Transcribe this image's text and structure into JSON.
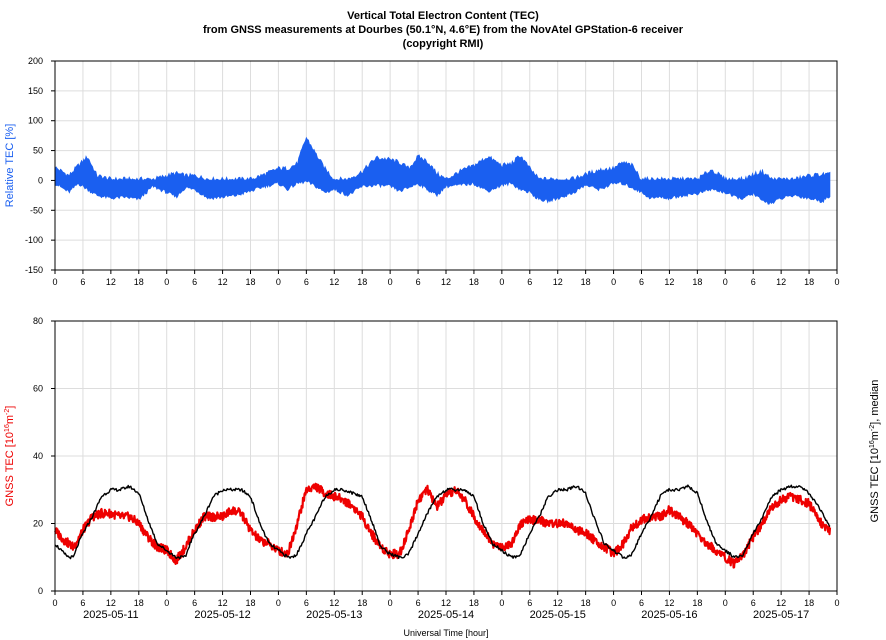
{
  "title": {
    "line1": "Vertical Total Electron Content (TEC)",
    "line2": "from GNSS measurements at Dourbes (50.1°N, 4.6°E) from the NovAtel GPStation-6 receiver",
    "line3": "(copyright RMI)"
  },
  "colors": {
    "relative": "#1a5ff0",
    "tec": "#ee0000",
    "median": "#000000",
    "grid": "#dddddd"
  },
  "chart_data": [
    {
      "type": "area",
      "ylabel": "Relative TEC [%]",
      "ylim": [
        -150,
        200
      ],
      "yticks": [
        200,
        150,
        100,
        50,
        0,
        -50,
        -100,
        -150
      ],
      "xlim_hours": [
        0,
        168
      ],
      "xtick_labels": [
        "0",
        "6",
        "12",
        "18",
        "0",
        "6",
        "12",
        "18",
        "0",
        "6",
        "12",
        "18",
        "0",
        "6",
        "12",
        "18",
        "0",
        "6",
        "12",
        "18",
        "0",
        "6",
        "12",
        "18",
        "0",
        "6",
        "12",
        "18",
        "0"
      ],
      "series": [
        {
          "x_hours": [
            0,
            3,
            5,
            7,
            9,
            12,
            15,
            18,
            21,
            24,
            26,
            28,
            30,
            33,
            36,
            39,
            42,
            45,
            48,
            50,
            52,
            54,
            56,
            58,
            60,
            63,
            66,
            69,
            72,
            74,
            76,
            78,
            80,
            82,
            84,
            87,
            90,
            93,
            96,
            98,
            100,
            102,
            104,
            106,
            108,
            111,
            114,
            117,
            120,
            122,
            124,
            126,
            128,
            130,
            132,
            135,
            138,
            141,
            144,
            146,
            148,
            150,
            152,
            154,
            156,
            159,
            162,
            165,
            166.5
          ],
          "upper": [
            22,
            8,
            25,
            40,
            8,
            2,
            2,
            2,
            2,
            8,
            12,
            8,
            8,
            2,
            2,
            2,
            2,
            10,
            20,
            20,
            28,
            72,
            45,
            20,
            2,
            2,
            15,
            38,
            35,
            30,
            20,
            40,
            32,
            12,
            2,
            15,
            25,
            40,
            25,
            28,
            42,
            20,
            2,
            2,
            2,
            2,
            10,
            18,
            20,
            30,
            25,
            2,
            2,
            2,
            2,
            2,
            2,
            18,
            2,
            2,
            2,
            10,
            15,
            2,
            2,
            2,
            8,
            10,
            10
          ],
          "lower": [
            -5,
            -20,
            -5,
            -15,
            -25,
            -30,
            -28,
            -32,
            -10,
            -20,
            -28,
            -12,
            -15,
            -30,
            -28,
            -25,
            -18,
            -10,
            -5,
            -15,
            -5,
            -2,
            -10,
            -20,
            -15,
            -25,
            -10,
            -8,
            -10,
            -18,
            -12,
            -5,
            -15,
            -25,
            -10,
            -8,
            -5,
            -18,
            -8,
            -5,
            -15,
            -20,
            -32,
            -35,
            -30,
            -22,
            -8,
            -15,
            -5,
            -5,
            -12,
            -20,
            -30,
            -28,
            -30,
            -25,
            -22,
            -15,
            -20,
            -28,
            -30,
            -22,
            -35,
            -38,
            -30,
            -25,
            -30,
            -35,
            -25
          ]
        }
      ]
    },
    {
      "type": "line",
      "ylabel": "GNSS TEC [10",
      "ylabel_sup": "16",
      "ylabel_rest": "m",
      "ylabel_sup2": "-2",
      "ylabel_end": "]",
      "y2label": "GNSS TEC [10",
      "y2label_sup": "16",
      "y2label_rest": "m",
      "y2label_sup2": "-2",
      "y2label_end": "], median",
      "ylim": [
        0,
        80
      ],
      "yticks": [
        80,
        60,
        40,
        20,
        0
      ],
      "xlim_hours": [
        0,
        168
      ],
      "xtick_labels": [
        "0",
        "6",
        "12",
        "18",
        "0",
        "6",
        "12",
        "18",
        "0",
        "6",
        "12",
        "18",
        "0",
        "6",
        "12",
        "18",
        "0",
        "6",
        "12",
        "18",
        "0",
        "6",
        "12",
        "18",
        "0",
        "6",
        "12",
        "18",
        "0"
      ],
      "date_labels": [
        "2025-05-11",
        "2025-05-12",
        "2025-05-13",
        "2025-05-14",
        "2025-05-15",
        "2025-05-16",
        "2025-05-17"
      ],
      "xlabel": "Universal Time [hour]",
      "series": [
        {
          "name": "GNSS TEC",
          "x_hours": [
            0,
            2,
            4,
            6,
            8,
            10,
            12,
            14,
            16,
            18,
            20,
            22,
            24,
            26,
            28,
            30,
            32,
            34,
            36,
            38,
            40,
            42,
            44,
            46,
            48,
            50,
            52,
            54,
            56,
            58,
            60,
            62,
            64,
            66,
            68,
            70,
            72,
            74,
            76,
            78,
            80,
            82,
            84,
            86,
            88,
            90,
            92,
            94,
            96,
            98,
            100,
            102,
            104,
            106,
            108,
            110,
            112,
            114,
            116,
            118,
            120,
            122,
            124,
            126,
            128,
            130,
            132,
            134,
            136,
            138,
            140,
            142,
            144,
            146,
            148,
            150,
            152,
            154,
            156,
            158,
            160,
            162,
            164,
            166,
            166.5
          ],
          "y": [
            18,
            15,
            13,
            18,
            22,
            23,
            23,
            22,
            22,
            20,
            16,
            13,
            12,
            9,
            13,
            18,
            22,
            22,
            22,
            24,
            23,
            18,
            15,
            14,
            12,
            11,
            20,
            30,
            31,
            29,
            28,
            27,
            25,
            22,
            17,
            13,
            11,
            11,
            18,
            27,
            30,
            25,
            28,
            30,
            27,
            22,
            18,
            14,
            13,
            14,
            20,
            21,
            21,
            20,
            20,
            20,
            18,
            17,
            15,
            13,
            11,
            14,
            19,
            21,
            22,
            22,
            24,
            22,
            20,
            17,
            14,
            12,
            10,
            8,
            11,
            16,
            20,
            25,
            27,
            28,
            27,
            26,
            21,
            18,
            18
          ]
        },
        {
          "name": "median",
          "x_hours": [
            0,
            2,
            3,
            4,
            5,
            6,
            8,
            10,
            12,
            14,
            16,
            18,
            20,
            22,
            24,
            26,
            27,
            28,
            29,
            30,
            32,
            34,
            36,
            38,
            40,
            42,
            44,
            46,
            48,
            50,
            51,
            52,
            53,
            54,
            56,
            58,
            60,
            62,
            64,
            66,
            68,
            70,
            72,
            74,
            75,
            76,
            77,
            78,
            80,
            82,
            84,
            86,
            88,
            90,
            92,
            94,
            96,
            98,
            99,
            100,
            101,
            102,
            104,
            106,
            108,
            110,
            112,
            114,
            116,
            118,
            120,
            122,
            123,
            124,
            125,
            126,
            128,
            130,
            132,
            134,
            136,
            138,
            140,
            142,
            144,
            146,
            147,
            148,
            149,
            150,
            152,
            154,
            156,
            158,
            160,
            162,
            164,
            166,
            166.5
          ],
          "y": [
            14,
            11,
            10,
            10,
            14,
            17,
            22,
            28,
            30,
            30,
            31,
            29,
            21,
            14,
            12,
            10,
            10,
            10,
            14,
            17,
            22,
            28,
            30,
            30,
            30,
            28,
            20,
            14,
            12,
            10,
            10,
            11,
            14,
            17,
            22,
            28,
            30,
            30,
            29,
            28,
            21,
            13,
            11,
            10,
            10,
            11,
            14,
            17,
            23,
            28,
            30,
            30,
            30,
            28,
            20,
            14,
            12,
            10,
            10,
            11,
            14,
            17,
            22,
            28,
            30,
            30,
            31,
            29,
            21,
            14,
            12,
            10,
            10,
            11,
            14,
            17,
            22,
            28,
            30,
            30,
            31,
            29,
            21,
            14,
            12,
            10,
            10,
            11,
            14,
            17,
            22,
            28,
            30,
            31,
            31,
            29,
            25,
            20,
            19
          ]
        }
      ]
    }
  ]
}
